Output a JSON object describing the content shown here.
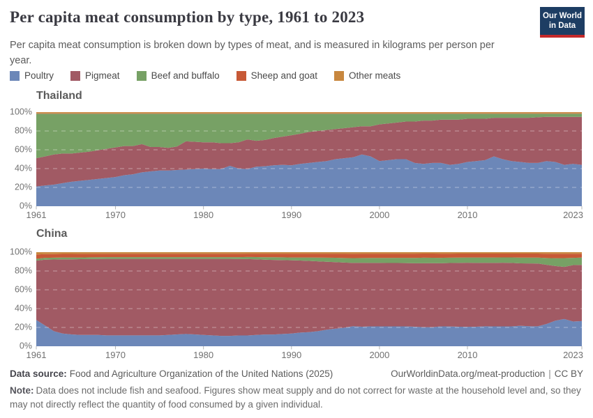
{
  "header": {
    "title": "Per capita meat consumption by type, 1961 to 2023",
    "subtitle": "Per capita meat consumption is broken down by types of meat, and is measured in kilograms per person per year.",
    "logo_line1": "Our World",
    "logo_line2": "in Data",
    "logo_bg_color": "#1d3d63",
    "logo_accent_color": "#c5292a"
  },
  "legend": {
    "items": [
      {
        "label": "Poultry",
        "color": "#6c87b8"
      },
      {
        "label": "Pigmeat",
        "color": "#a15a64"
      },
      {
        "label": "Beef and buffalo",
        "color": "#77a165"
      },
      {
        "label": "Sheep and goat",
        "color": "#c75936"
      },
      {
        "label": "Other meats",
        "color": "#c8873e"
      }
    ]
  },
  "chart_data": [
    {
      "type": "area",
      "stacked": true,
      "percent_normalized": true,
      "title": "Thailand",
      "xlabel": "",
      "ylabel": "",
      "ylim": [
        0,
        100
      ],
      "x_range": [
        1961,
        2023
      ],
      "x_ticks": [
        1961,
        1970,
        1980,
        1990,
        2000,
        2010,
        2023
      ],
      "y_ticks": [
        0,
        20,
        40,
        60,
        80,
        100
      ],
      "y_tick_suffix": "%",
      "grid": true,
      "legend_position": "top",
      "x": [
        1961,
        1962,
        1963,
        1964,
        1965,
        1966,
        1967,
        1968,
        1969,
        1970,
        1971,
        1972,
        1973,
        1974,
        1975,
        1976,
        1977,
        1978,
        1979,
        1980,
        1981,
        1982,
        1983,
        1984,
        1985,
        1986,
        1987,
        1988,
        1989,
        1990,
        1991,
        1992,
        1993,
        1994,
        1995,
        1996,
        1997,
        1998,
        1999,
        2000,
        2001,
        2002,
        2003,
        2004,
        2005,
        2006,
        2007,
        2008,
        2009,
        2010,
        2011,
        2012,
        2013,
        2014,
        2015,
        2016,
        2017,
        2018,
        2019,
        2020,
        2021,
        2022,
        2023
      ],
      "series": [
        {
          "name": "Poultry",
          "color": "#6c87b8",
          "values": [
            21,
            22,
            23,
            24.5,
            26,
            27,
            28,
            29,
            30,
            31,
            33,
            34,
            36,
            37,
            38,
            38,
            38.5,
            39,
            39.5,
            40,
            39.5,
            39.5,
            43,
            40,
            39.5,
            42,
            42.5,
            43.5,
            44,
            43.5,
            45,
            46,
            47,
            48,
            50,
            51,
            52,
            55,
            53,
            48,
            49,
            50,
            50,
            46,
            45,
            46,
            46,
            44,
            45,
            47,
            48,
            49,
            53,
            50,
            48,
            47,
            46,
            46,
            48,
            47,
            44,
            45,
            44
          ]
        },
        {
          "name": "Pigmeat",
          "color": "#a15a64",
          "values": [
            30,
            31,
            32,
            31.5,
            30,
            30,
            30,
            30.5,
            31,
            31.5,
            31,
            30,
            30,
            26,
            25,
            24,
            25,
            30,
            29,
            28,
            28.5,
            27.5,
            24,
            28,
            31.5,
            27.5,
            28,
            29,
            30,
            32,
            32,
            33,
            33,
            33,
            32,
            32,
            32,
            30,
            32,
            39,
            39,
            39,
            40,
            44,
            46,
            45,
            46,
            48,
            47,
            46,
            45,
            44,
            41,
            44,
            46,
            47,
            48,
            48.5,
            47,
            48,
            51,
            50,
            51
          ]
        },
        {
          "name": "Beef and buffalo",
          "color": "#77a165",
          "values": [
            47.3,
            45.3,
            43.3,
            42.3,
            42.3,
            41.3,
            40.3,
            38.8,
            37.3,
            35.8,
            34.3,
            34.3,
            32.3,
            35.3,
            35.3,
            36.3,
            34.8,
            29.3,
            29.8,
            30.3,
            30.3,
            31.3,
            31.3,
            30.3,
            27.3,
            28.8,
            27.8,
            25.8,
            24.3,
            22.8,
            21.3,
            19.3,
            18.3,
            17.3,
            16.3,
            15.3,
            14.3,
            13.3,
            13.3,
            11.3,
            10.3,
            9.3,
            8.3,
            8.3,
            7.3,
            7.3,
            6.3,
            6.3,
            6.3,
            5.3,
            5.3,
            5.3,
            4.3,
            4.3,
            4.3,
            4.3,
            4.3,
            3.8,
            3.3,
            3.3,
            3.3,
            3.3,
            3.3
          ]
        },
        {
          "name": "Sheep and goat",
          "color": "#c75936",
          "values": 0.4
        },
        {
          "name": "Other meats",
          "color": "#c8873e",
          "values": 1.3
        }
      ]
    },
    {
      "type": "area",
      "stacked": true,
      "percent_normalized": true,
      "title": "China",
      "xlabel": "",
      "ylabel": "",
      "ylim": [
        0,
        100
      ],
      "x_range": [
        1961,
        2023
      ],
      "x_ticks": [
        1961,
        1970,
        1980,
        1990,
        2000,
        2010,
        2023
      ],
      "y_ticks": [
        0,
        20,
        40,
        60,
        80,
        100
      ],
      "y_tick_suffix": "%",
      "grid": true,
      "legend_position": "top",
      "x": [
        1961,
        1962,
        1963,
        1964,
        1965,
        1966,
        1967,
        1968,
        1969,
        1970,
        1971,
        1972,
        1973,
        1974,
        1975,
        1976,
        1977,
        1978,
        1979,
        1980,
        1981,
        1982,
        1983,
        1984,
        1985,
        1986,
        1987,
        1988,
        1989,
        1990,
        1991,
        1992,
        1993,
        1994,
        1995,
        1996,
        1997,
        1998,
        1999,
        2000,
        2001,
        2002,
        2003,
        2004,
        2005,
        2006,
        2007,
        2008,
        2009,
        2010,
        2011,
        2012,
        2013,
        2014,
        2015,
        2016,
        2017,
        2018,
        2019,
        2020,
        2021,
        2022,
        2023
      ],
      "series": [
        {
          "name": "Poultry",
          "color": "#6c87b8",
          "values": [
            28,
            22,
            16,
            13.5,
            12.5,
            12,
            12,
            12,
            11.5,
            11.5,
            11.5,
            11.5,
            11.5,
            11.5,
            11.5,
            12,
            12.5,
            13,
            12.5,
            12,
            11.5,
            11,
            11,
            11.5,
            11.5,
            12,
            12.5,
            12.5,
            13,
            13.5,
            14.5,
            15,
            16,
            17.5,
            18.5,
            19.5,
            21,
            20.5,
            21,
            21,
            21,
            21,
            21,
            20.5,
            20,
            20,
            20.5,
            20.5,
            20.5,
            20.5,
            20.5,
            21,
            21,
            21,
            21,
            21.5,
            21,
            21,
            23,
            26,
            28,
            25.5,
            26
          ]
        },
        {
          "name": "Pigmeat",
          "color": "#a15a64",
          "values": [
            63,
            70,
            76,
            78.5,
            79.5,
            80.5,
            80.7,
            80.8,
            81,
            81,
            81,
            81,
            81,
            81,
            81,
            80.5,
            80,
            79.5,
            80,
            80.5,
            81,
            81.5,
            81.5,
            81,
            81,
            80.3,
            79.5,
            79.3,
            78.5,
            77.5,
            76.3,
            75.5,
            74.3,
            72,
            70,
            68.5,
            66.5,
            67.3,
            67,
            67,
            67,
            67,
            67,
            66.8,
            67.2,
            67,
            65,
            66,
            67,
            67.5,
            67,
            67,
            67,
            67.5,
            67,
            65.5,
            66,
            66,
            61,
            55.5,
            53.5,
            58,
            58
          ]
        },
        {
          "name": "Beef and buffalo",
          "color": "#77a165",
          "values": [
            2,
            2,
            2,
            2,
            2,
            1.8,
            1.8,
            1.8,
            1.8,
            1.8,
            1.8,
            1.8,
            1.8,
            1.8,
            1.8,
            1.8,
            1.8,
            1.8,
            1.8,
            1.8,
            1.8,
            1.8,
            1.8,
            2,
            2.2,
            2.4,
            2.6,
            2.8,
            2.9,
            3,
            3.3,
            3.6,
            4,
            4.3,
            4.5,
            4.8,
            5,
            5.1,
            5.2,
            5.2,
            5.3,
            5.4,
            5.5,
            5.6,
            5.8,
            5.7,
            5.6,
            5.5,
            5.5,
            5.5,
            5.6,
            5.6,
            5.7,
            5.7,
            5.8,
            6,
            6.1,
            6.2,
            7,
            8,
            9,
            7.5,
            7.5
          ]
        },
        {
          "name": "Sheep and goat",
          "color": "#c75936",
          "values": [
            4.5,
            4,
            3.8,
            3.8,
            3.8,
            3.8,
            3.7,
            3.6,
            3.6,
            3.6,
            3.6,
            3.6,
            3.6,
            3.6,
            3.6,
            3.6,
            3.6,
            3.6,
            3.6,
            3.6,
            3.6,
            3.6,
            3.6,
            3.6,
            3.5,
            3.6,
            3.8,
            3.8,
            3.9,
            4,
            4,
            4,
            4.1,
            4.2,
            4.3,
            4.5,
            4.6,
            4.5,
            4.5,
            4.5,
            4.5,
            4.4,
            4.4,
            4.4,
            4.3,
            4.3,
            4.3,
            4.2,
            4.2,
            4.1,
            4.1,
            4.1,
            4.1,
            4,
            4,
            4.2,
            4.2,
            4.2,
            4.4,
            4.5,
            4.5,
            4.2,
            4
          ]
        },
        {
          "name": "Other meats",
          "color": "#c8873e",
          "values": [
            2.5,
            2,
            2,
            1.8,
            1.8,
            1.8,
            1.8,
            1.8,
            1.7,
            1.7,
            1.7,
            1.7,
            1.7,
            1.7,
            1.7,
            1.7,
            1.7,
            1.7,
            1.7,
            1.7,
            1.7,
            1.7,
            1.7,
            1.7,
            1.6,
            1.6,
            1.6,
            1.6,
            1.6,
            1.6,
            1.6,
            1.6,
            1.6,
            1.6,
            1.6,
            1.6,
            1.6,
            1.6,
            1.6,
            1.6,
            1.6,
            1.6,
            1.6,
            1.6,
            1.5,
            1.5,
            1.5,
            1.5,
            1.5,
            1.5,
            1.5,
            1.5,
            1.5,
            1.5,
            1.5,
            1.5,
            1.5,
            1.5,
            1.6,
            1.6,
            1.6,
            1.6,
            1.6
          ]
        }
      ]
    }
  ],
  "footer": {
    "source_label": "Data source:",
    "source_text": "Food and Agriculture Organization of the United Nations (2025)",
    "link": "OurWorldinData.org/meat-production",
    "sep": "|",
    "license": "CC BY",
    "note_label": "Note:",
    "note_text": "Data does not include fish and seafood. Figures show meat supply and do not correct for waste at the household level and, so they may not directly reflect the quantity of food consumed by a given individual."
  }
}
